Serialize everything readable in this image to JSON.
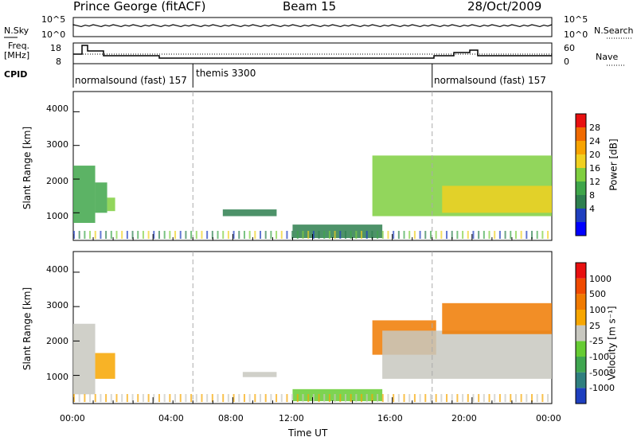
{
  "header": {
    "station": "Prince George (fitACF)",
    "beam": "Beam 15",
    "date": "28/Oct/2009"
  },
  "strip": {
    "nsky_label": "N.Sky",
    "nsky_ticks": [
      "10^5",
      "10^0"
    ],
    "nsearch_label": "N.Search",
    "nsearch_ticks": [
      "10^5",
      "10^0"
    ],
    "freq_label_1": "Freq.",
    "freq_label_2": "[MHz]",
    "freq_ticks": [
      "18",
      "8"
    ],
    "nave_label": "Nave",
    "nave_ticks": [
      "60",
      "0"
    ],
    "cpid_label": "CPID",
    "cpid_segments": [
      {
        "name": "normalsound (fast) 157",
        "start_hour": 0.0,
        "end_hour": 6.0
      },
      {
        "name": "themis 3300",
        "start_hour": 6.0,
        "end_hour": 18.0
      },
      {
        "name": "normalsound (fast) 157",
        "start_hour": 18.0,
        "end_hour": 24.0
      }
    ]
  },
  "axes": {
    "ylabel": "Slant Range [km]",
    "yticks": [
      "4000",
      "3000",
      "2000",
      "1000"
    ],
    "xlabel": "Time UT",
    "xticks": [
      "00:00",
      "04:00",
      "08:00",
      "12:00",
      "16:00",
      "20:00",
      "00:00"
    ]
  },
  "colorbars": {
    "power": {
      "label": "Power [dB]",
      "ticks": [
        "28",
        "24",
        "20",
        "16",
        "12",
        "8",
        "4"
      ],
      "colors": [
        "#0000ff",
        "#1f3fbf",
        "#2e7f4f",
        "#3fa64a",
        "#7fcf3f",
        "#f0d020",
        "#f7a300",
        "#f06a00",
        "#e81010"
      ]
    },
    "velocity": {
      "label": "Velocity [m s⁻¹]",
      "ticks": [
        "1000",
        "500",
        "100",
        "25",
        "-25",
        "-100",
        "-500",
        "-1000"
      ],
      "colors": [
        "#1e3fbf",
        "#2f7f7f",
        "#3fa650",
        "#66cc33",
        "#c8c8c0",
        "#f7a600",
        "#f07a00",
        "#f04a00",
        "#e81010"
      ]
    }
  },
  "chart_data": [
    {
      "type": "heatmap",
      "title": "Power",
      "x_range_hours": [
        0,
        24
      ],
      "ylim": [
        180,
        4600
      ],
      "colorbar": "Power [dB]",
      "regions": [
        {
          "t_start": 0.0,
          "t_end": 1.1,
          "r_start": 700,
          "r_end": 2400,
          "value_db": 12
        },
        {
          "t_start": 1.1,
          "t_end": 1.7,
          "r_start": 1000,
          "r_end": 1900,
          "value_db": 14
        },
        {
          "t_start": 1.7,
          "t_end": 2.1,
          "r_start": 1050,
          "r_end": 1450,
          "value_db": 18
        },
        {
          "t_start": 7.5,
          "t_end": 10.2,
          "r_start": 900,
          "r_end": 1100,
          "value_db": 8
        },
        {
          "t_start": 11.0,
          "t_end": 15.5,
          "r_start": 250,
          "r_end": 650,
          "value_db": 10
        },
        {
          "t_start": 15.0,
          "t_end": 24.0,
          "r_start": 900,
          "r_end": 2700,
          "value_db": 16
        },
        {
          "t_start": 18.5,
          "t_end": 24.0,
          "r_start": 1000,
          "r_end": 1800,
          "value_db": 22
        }
      ]
    },
    {
      "type": "heatmap",
      "title": "Velocity",
      "x_range_hours": [
        0,
        24
      ],
      "ylim": [
        180,
        4600
      ],
      "colorbar": "Velocity [m s-1]",
      "regions": [
        {
          "t_start": 0.0,
          "t_end": 1.1,
          "r_start": 450,
          "r_end": 2500,
          "value_ms": 0
        },
        {
          "t_start": 1.1,
          "t_end": 2.1,
          "r_start": 900,
          "r_end": 1650,
          "value_ms": -100
        },
        {
          "t_start": 8.5,
          "t_end": 10.2,
          "r_start": 950,
          "r_end": 1100,
          "value_ms": 0
        },
        {
          "t_start": 11.0,
          "t_end": 15.5,
          "r_start": 250,
          "r_end": 600,
          "value_ms": 50
        },
        {
          "t_start": 15.0,
          "t_end": 18.2,
          "r_start": 1600,
          "r_end": 2600,
          "value_ms": -300
        },
        {
          "t_start": 15.5,
          "t_end": 24.0,
          "r_start": 900,
          "r_end": 2300,
          "value_ms": 0
        },
        {
          "t_start": 18.5,
          "t_end": 24.0,
          "r_start": 2200,
          "r_end": 3100,
          "value_ms": -200
        }
      ]
    }
  ]
}
